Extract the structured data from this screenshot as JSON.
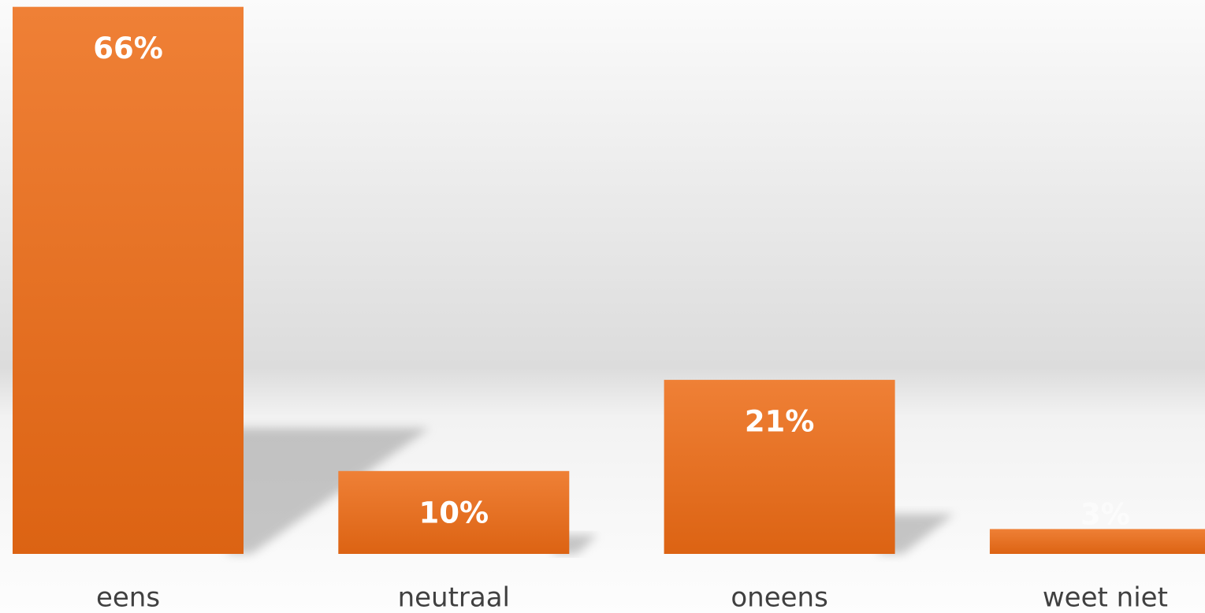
{
  "chart_data": {
    "type": "bar",
    "categories": [
      "eens",
      "neutraal",
      "oneens",
      "weet niet"
    ],
    "values": [
      66,
      10,
      21,
      3
    ],
    "value_labels": [
      "66%",
      "10%",
      "21%",
      "3%"
    ],
    "color": "#e8701f"
  }
}
